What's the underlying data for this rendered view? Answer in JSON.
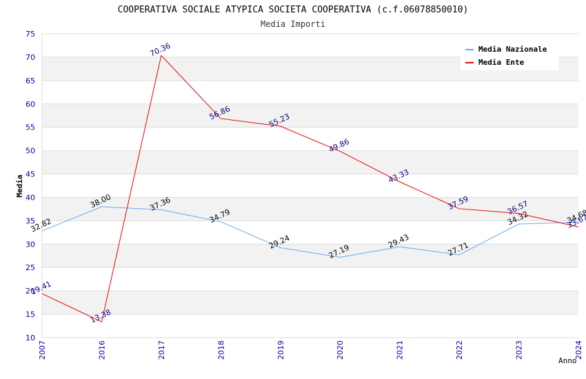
{
  "chart_data": {
    "type": "line",
    "title": "COOPERATIVA SOCIALE ATYPICA SOCIETA COOPERATIVA (c.f.06078850010)",
    "subtitle": "Media Importi",
    "xlabel": "Anno",
    "ylabel": "Media",
    "ylim": [
      10,
      75
    ],
    "yticks": [
      "10",
      "15",
      "20",
      "25",
      "30",
      "35",
      "40",
      "45",
      "50",
      "55",
      "60",
      "65",
      "70",
      "75"
    ],
    "categories": [
      "2007",
      "2016",
      "2017",
      "2018",
      "2019",
      "2020",
      "2021",
      "2022",
      "2023",
      "2024"
    ],
    "legend_position": "top-right",
    "series": [
      {
        "name": "Media Nazionale",
        "color": "#66aaee",
        "label_color": "#000000",
        "values": [
          32.82,
          38.0,
          37.36,
          34.79,
          29.24,
          27.19,
          29.43,
          27.71,
          34.32,
          34.68
        ],
        "labels": [
          "32.82",
          "38.00",
          "37.36",
          "34.79",
          "29.24",
          "27.19",
          "29.43",
          "27.71",
          "34.32",
          "34.68"
        ]
      },
      {
        "name": "Media Ente",
        "color": "#ee0000",
        "label_color": "#000080",
        "values": [
          19.41,
          13.38,
          70.36,
          56.86,
          55.23,
          49.86,
          43.33,
          37.59,
          36.57,
          33.67
        ],
        "labels": [
          "19.41",
          "13.38",
          "70.36",
          "56.86",
          "55.23",
          "49.86",
          "43.33",
          "37.59",
          "36.57",
          "33.67"
        ]
      }
    ],
    "colors": {
      "axis_text": "#0000aa",
      "grid": "#dddddd",
      "band": "#f2f2f2"
    }
  }
}
